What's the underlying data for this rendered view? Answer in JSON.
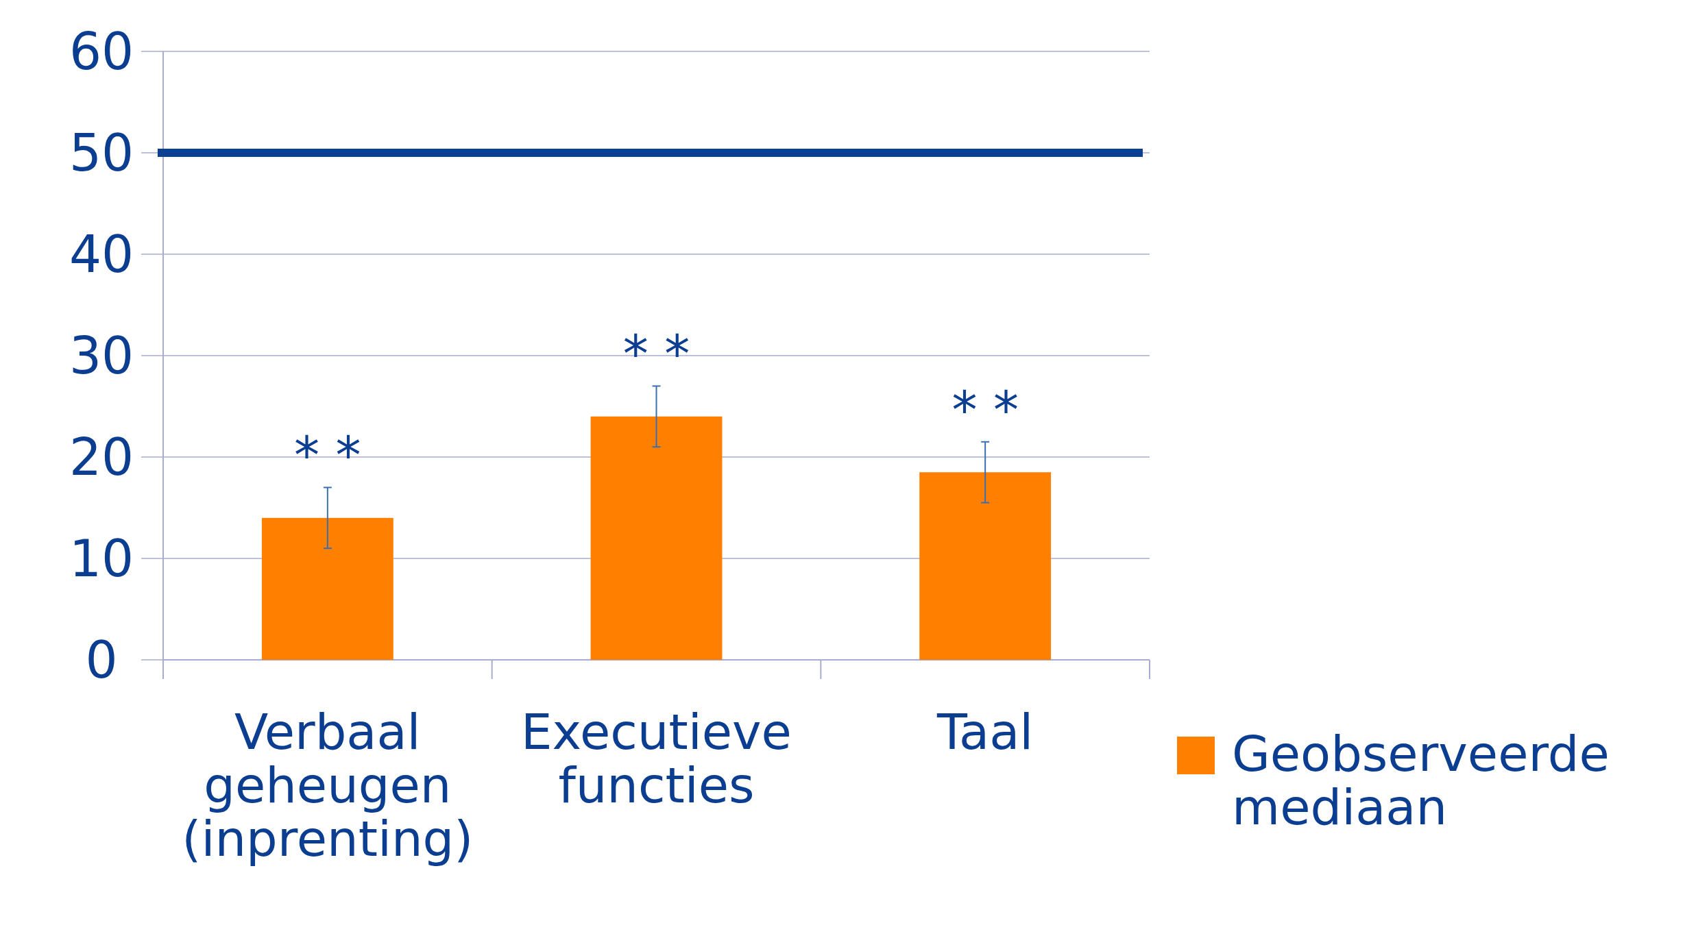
{
  "chart_data": {
    "type": "bar",
    "categories": [
      "Verbaal geheugen (inprenting)",
      "Executieve functies",
      "Taal"
    ],
    "series": [
      {
        "name": "Geobserveerde mediaan",
        "color": "#ff7f00",
        "values": [
          14,
          24,
          18.5
        ],
        "errors": [
          3,
          3,
          3
        ]
      }
    ],
    "ylim": [
      0,
      60
    ],
    "yticks": [
      0,
      10,
      20,
      30,
      40,
      50,
      60
    ],
    "grid": "y",
    "legend": "right",
    "ref_lines": [
      {
        "axis": "y",
        "value": 50,
        "color": "#0a3f94"
      }
    ],
    "annotations": [
      {
        "text": "* *",
        "x": "Verbaal geheugen (inprenting)",
        "y": 17
      },
      {
        "text": "* *",
        "x": "Executieve functies",
        "y": 27
      },
      {
        "text": "* *",
        "x": "Taal",
        "y": 21.5
      }
    ]
  }
}
